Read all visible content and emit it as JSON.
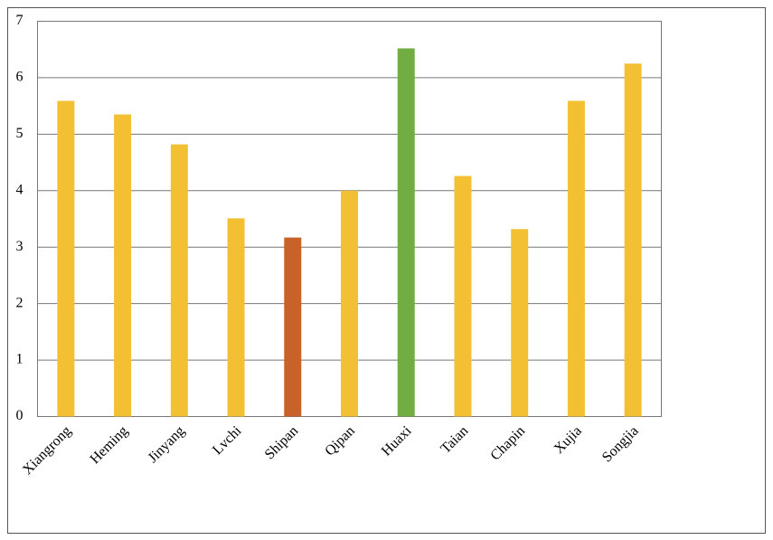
{
  "chart_data": {
    "type": "bar",
    "categories": [
      "Xiangrong",
      "Heming",
      "Jinyang",
      "Lvchi",
      "Shipan",
      "Qipan",
      "Huaxi",
      "Taian",
      "Chapin",
      "Xujia",
      "Songjia"
    ],
    "values": [
      5.59,
      5.35,
      4.82,
      3.51,
      3.17,
      4.0,
      6.52,
      4.26,
      3.32,
      5.59,
      6.25
    ],
    "colors": [
      "#f4c033",
      "#f4c033",
      "#f4c033",
      "#f4c033",
      "#c9612b",
      "#f4c033",
      "#72ad44",
      "#f4c033",
      "#f4c033",
      "#f4c033",
      "#f4c033"
    ],
    "ylim": [
      0,
      7
    ],
    "yticks": [
      0,
      1,
      2,
      3,
      4,
      5,
      6,
      7
    ],
    "grid": true
  }
}
